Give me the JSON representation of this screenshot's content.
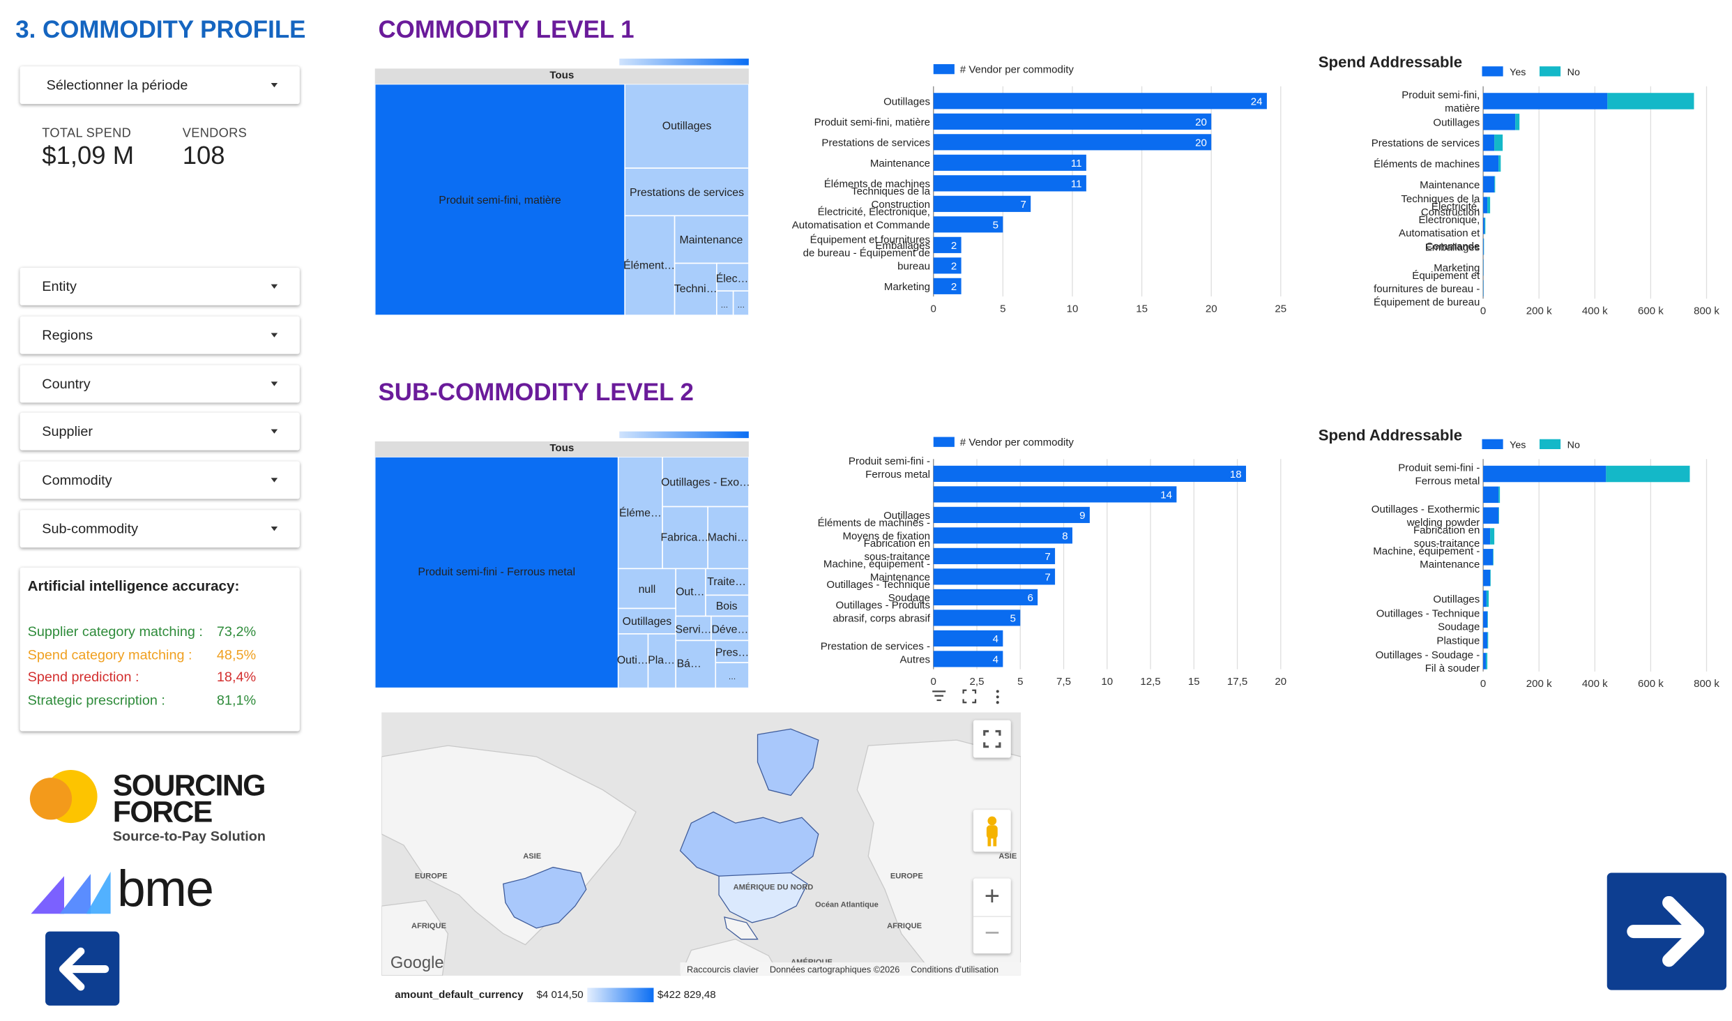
{
  "page": {
    "title": "3. COMMODITY PROFILE",
    "level1_title": "COMMODITY LEVEL 1",
    "level2_title": "SUB-COMMODITY LEVEL 2"
  },
  "period": {
    "label": "Sélectionner la période"
  },
  "kpis": {
    "total_spend_label": "TOTAL SPEND",
    "total_spend_value": "$1,09 M",
    "vendors_label": "VENDORS",
    "vendors_value": "108"
  },
  "filters": [
    "Entity",
    "Regions",
    "Country",
    "Supplier",
    "Commodity",
    "Sub-commodity"
  ],
  "ai_accuracy": {
    "title": "Artificial intelligence accuracy:",
    "rows": [
      {
        "label": "Supplier category matching :",
        "value": "73,2%",
        "color": "#2e8b3a"
      },
      {
        "label": "Spend category matching :",
        "value": "48,5%",
        "color": "#f0a020"
      },
      {
        "label": "Spend prediction :",
        "value": "18,4%",
        "color": "#d32f2f"
      },
      {
        "label": "Strategic prescription :",
        "value": "81,1%",
        "color": "#2e8b3a"
      }
    ]
  },
  "logos": {
    "sourcing_force_1": "SOURCING",
    "sourcing_force_2": "FORCE",
    "sourcing_force_tagline": "Source-to-Pay Solution",
    "bme": "bme"
  },
  "colors": {
    "title_blue": "#1565c0",
    "title_purple": "#6a1b9a",
    "bar_blue": "#0a6cf0",
    "no_teal": "#14b8c8",
    "treemap_dark": "#0b6ef3",
    "treemap_light": "#a9cdfb",
    "nav_blue": "#0d3e91"
  },
  "treemap1": {
    "header": "Tous",
    "cells": [
      "Produit semi-fini, matière",
      "Outillages",
      "Prestations de services",
      "Élément…",
      "Maintenance",
      "Techni…",
      "Élec…",
      "…",
      "…"
    ]
  },
  "treemap2": {
    "header": "Tous",
    "cells": [
      "Produit semi-fini - Ferrous metal",
      "Éléme…",
      "Outillages - Exo…",
      "Fabrica…",
      "Machi…",
      "null",
      "Out…",
      "Traite…",
      "Bois",
      "Outillages",
      "Servi…",
      "Déve…",
      "Outi…",
      "Pla…",
      "Bá…",
      "Pres…",
      "…"
    ]
  },
  "chart_data": [
    {
      "type": "bar",
      "orientation": "horizontal",
      "legend": "# Vendor per commodity",
      "categories": [
        "Outillages",
        "Produit semi-fini, matière",
        "Prestations de services",
        "Maintenance",
        "Éléments de machines",
        "Techniques de la Construction",
        "Électricité, Électronique, Automatisation et Commande",
        "Emballages",
        "Équipement et fournitures de bureau - Équipement de bureau",
        "Marketing"
      ],
      "values": [
        24,
        20,
        20,
        11,
        11,
        7,
        5,
        2,
        2,
        2
      ],
      "xlim": [
        0,
        25
      ],
      "xticks": [
        "0",
        "5",
        "10",
        "15",
        "20",
        "25"
      ]
    },
    {
      "type": "bar",
      "orientation": "horizontal",
      "stacked": true,
      "title": "Spend Addressable",
      "series_names": [
        "Yes",
        "No"
      ],
      "categories": [
        "Produit semi-fini, matière",
        "Outillages",
        "Prestations de services",
        "Éléments de machines",
        "Maintenance",
        "Techniques de la Construction",
        "Électricité, Électronique, Automatisation et Commande",
        "Emballages",
        "Marketing",
        "Équipement et fournitures de bureau - Équipement de bureau"
      ],
      "yes": [
        445000,
        115000,
        40000,
        55000,
        40000,
        15000,
        5000,
        2000,
        1000,
        1000
      ],
      "no": [
        310000,
        15000,
        30000,
        8000,
        3000,
        10000,
        3000,
        1000,
        500,
        500
      ],
      "xlim": [
        0,
        800000
      ],
      "xticks": [
        "0",
        "200 k",
        "400 k",
        "600 k",
        "800 k"
      ]
    },
    {
      "type": "bar",
      "orientation": "horizontal",
      "legend": "# Vendor per commodity",
      "categories": [
        "Produit semi-fini - Ferrous metal",
        "",
        "Outillages",
        "Éléments de machines - Moyens de fixation",
        "Fabrication en sous-traitance",
        "Machine, équipement - Maintenance",
        "Outillages - Technique Soudage",
        "Outillages - Produits abrasif, corps abrasif",
        "",
        "Prestation de services - Autres"
      ],
      "values": [
        18,
        14,
        9,
        8,
        7,
        7,
        6,
        5,
        4,
        4
      ],
      "xlim": [
        0,
        20
      ],
      "xticks": [
        "0",
        "2,5",
        "5",
        "7,5",
        "10",
        "12,5",
        "15",
        "17,5",
        "20"
      ]
    },
    {
      "type": "bar",
      "orientation": "horizontal",
      "stacked": true,
      "title": "Spend Addressable",
      "series_names": [
        "Yes",
        "No"
      ],
      "categories": [
        "Produit semi-fini - Ferrous metal",
        "",
        "Outillages - Exothermic welding powder",
        "Fabrication en sous-traitance",
        "Machine, équipement - Maintenance",
        "",
        "Outillages",
        "Outillages - Technique Soudage",
        "Plastique",
        "Outillages - Soudage - Fil à souder"
      ],
      "yes": [
        440000,
        55000,
        55000,
        25000,
        35000,
        25000,
        12000,
        15000,
        15000,
        10000
      ],
      "no": [
        300000,
        5000,
        2000,
        15000,
        2000,
        2000,
        8000,
        2000,
        3000,
        5000
      ],
      "xlim": [
        0,
        800000
      ],
      "xticks": [
        "0",
        "200 k",
        "400 k",
        "600 k",
        "800 k"
      ]
    }
  ],
  "map": {
    "labels": [
      "ASIE",
      "EUROPE",
      "AFRIQUE",
      "AMÉRIQUE DU NORD",
      "Océan Atlantique",
      "AMÉRIQUE",
      "EUROPE",
      "AFRIQUE",
      "ASIE"
    ],
    "google": "Google",
    "footer": [
      "Raccourcis clavier",
      "Données cartographiques ©2026",
      "Conditions d'utilisation"
    ],
    "zoom_in": "+",
    "zoom_out": "−",
    "scale_field": "amount_default_currency",
    "scale_min": "$4 014,50",
    "scale_max": "$422 829,48"
  }
}
